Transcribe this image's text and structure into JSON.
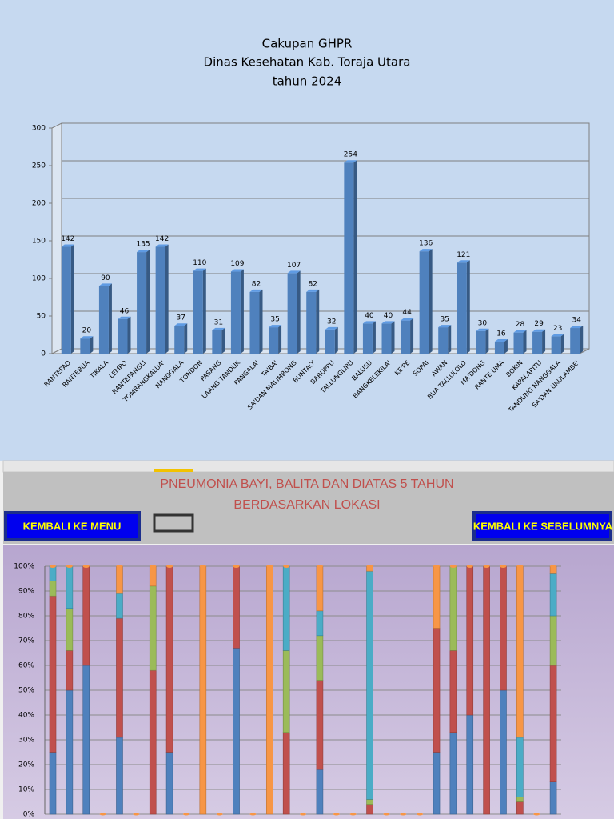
{
  "chart_data": [
    {
      "type": "bar",
      "title": [
        "Cakupan GHPR",
        "Dinas Kesehatan Kab. Toraja Utara",
        "tahun 2024"
      ],
      "categories": [
        "RANTEPAO",
        "RANTEBUA",
        "TIKALA",
        "LEMPO",
        "RANTEPANGLI",
        "TOMBANGKALUA'",
        "NANGGALA",
        "TONDON",
        "PASANG",
        "LAANG TANDUK",
        "PANGALA'",
        "TA'BA'",
        "SA'DAN MALIMBONG",
        "BUNTAO'",
        "BARUPPU",
        "TALLUNGLIPU",
        "BALUSU",
        "BANGKELEKILA'",
        "KE'PE",
        "SOPAI",
        "AWAN",
        "BUA TALLULOLO",
        "MA'DONG",
        "RANTE UMA",
        "BOKIN",
        "KAPALAPITU",
        "TANDUNG NANGGALA",
        "SA'DAN UKULAMBE'"
      ],
      "values": [
        142,
        20,
        90,
        46,
        135,
        142,
        37,
        110,
        31,
        109,
        82,
        35,
        107,
        82,
        32,
        254,
        40,
        40,
        44,
        136,
        35,
        121,
        30,
        16,
        28,
        29,
        23,
        34
      ],
      "color": "#4f81bd",
      "ylim": [
        0,
        300
      ],
      "yticks": [
        0,
        50,
        100,
        150,
        200,
        250,
        300
      ],
      "grid": true
    },
    {
      "type": "stacked_bar",
      "title": [
        "PNEUMONIA BAYI, BALITA DAN DIATAS 5 TAHUN",
        "BERDASARKAN LOKASI"
      ],
      "categories": [
        null,
        null,
        null,
        null,
        null,
        null,
        null,
        null,
        null,
        null,
        null,
        null,
        null,
        null,
        null,
        null,
        null,
        null,
        null,
        null,
        null,
        null,
        null,
        null,
        null,
        null,
        null,
        null,
        null,
        null,
        null
      ],
      "series": [
        {
          "color": "#4f81bd",
          "values": [
            25,
            50,
            60,
            0,
            31,
            0,
            0,
            25,
            0,
            0,
            0,
            67,
            0,
            0,
            0,
            0,
            18,
            0,
            0,
            0,
            0,
            0,
            0,
            25,
            33,
            40,
            0,
            50,
            0,
            0,
            13
          ]
        },
        {
          "color": "#c0504d",
          "values": [
            63,
            16,
            40,
            0,
            48,
            0,
            58,
            75,
            0,
            0,
            0,
            33,
            0,
            0,
            33,
            0,
            36,
            0,
            0,
            4,
            0,
            0,
            0,
            50,
            33,
            60,
            100,
            50,
            5,
            0,
            47
          ]
        },
        {
          "color": "#9bbb59",
          "values": [
            6,
            17,
            0,
            0,
            0,
            0,
            34,
            0,
            0,
            0,
            0,
            0,
            0,
            0,
            33,
            0,
            18,
            0,
            0,
            2,
            0,
            0,
            0,
            0,
            34,
            0,
            0,
            0,
            2,
            0,
            20
          ]
        },
        {
          "color": "#4bacc6",
          "values": [
            6,
            17,
            0,
            0,
            10,
            0,
            0,
            0,
            0,
            0,
            0,
            0,
            0,
            0,
            34,
            0,
            10,
            0,
            0,
            92,
            0,
            0,
            0,
            0,
            0,
            0,
            0,
            0,
            24,
            0,
            17
          ]
        },
        {
          "color": "#f79646",
          "values": [
            0,
            0,
            0,
            0,
            11,
            0,
            8,
            0,
            0,
            100,
            0,
            0,
            0,
            100,
            0,
            0,
            18,
            0,
            0,
            2,
            0,
            0,
            0,
            25,
            0,
            0,
            0,
            0,
            69,
            0,
            3
          ]
        }
      ],
      "ylim": [
        0,
        100
      ],
      "yticks": [
        {
          "value": 0,
          "label": "0%"
        },
        {
          "value": 10,
          "label": "10%"
        },
        {
          "value": 20,
          "label": "20%"
        },
        {
          "value": 30,
          "label": "30%"
        },
        {
          "value": 40,
          "label": "40%"
        },
        {
          "value": 50,
          "label": "50%"
        },
        {
          "value": 60,
          "label": "60%"
        },
        {
          "value": 70,
          "label": "70%"
        },
        {
          "value": 80,
          "label": "80%"
        },
        {
          "value": 90,
          "label": "90%"
        },
        {
          "value": 100,
          "label": "100%"
        }
      ],
      "grid": true
    }
  ],
  "buttons": [
    "KEMBALI KE MENU",
    "KEMBALI  KE SEBELUMNYA"
  ]
}
